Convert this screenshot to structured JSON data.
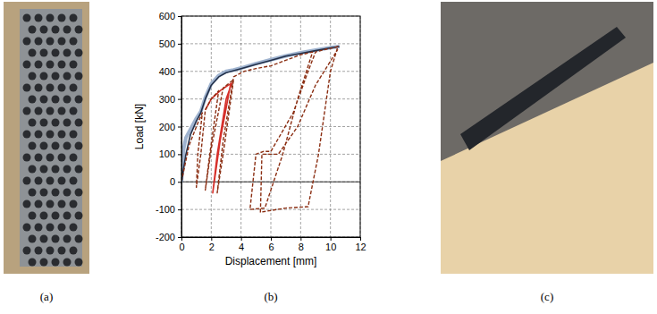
{
  "panel_labels": [
    "(a)",
    "(b)",
    "(c)"
  ],
  "chart_data": {
    "type": "line",
    "x_label": "Displacement [mm]",
    "y_label": "Load [kN]",
    "xlim": [
      0,
      12
    ],
    "xticks": [
      0,
      2,
      4,
      6,
      8,
      10,
      12
    ],
    "ylim": [
      -200,
      600
    ],
    "yticks": [
      -200,
      -100,
      0,
      100,
      200,
      300,
      400,
      500,
      600
    ],
    "grid": true,
    "series": [
      {
        "color": "#9fb3cf",
        "line_style": "solid",
        "x": [
          0,
          0.15,
          0.3,
          0.6,
          1.0,
          1.3,
          1.6,
          2.0,
          2.5,
          3.0,
          3.5,
          4.0,
          5.0,
          6.0,
          7.0,
          8.0,
          9.0,
          10.0,
          10.6
        ],
        "values": [
          0,
          120,
          160,
          190,
          230,
          255,
          305,
          355,
          385,
          400,
          405,
          412,
          428,
          442,
          456,
          467,
          477,
          486,
          490
        ]
      },
      {
        "color": "#22304a",
        "line_style": "solid",
        "x": [
          0,
          0.3,
          0.6,
          1.0,
          1.3,
          1.6,
          2.0,
          2.5,
          3.0,
          4.0,
          5.0,
          6.0,
          7.0,
          8.0,
          9.0,
          10.0,
          10.6
        ],
        "values": [
          0,
          100,
          170,
          220,
          250,
          300,
          350,
          380,
          395,
          410,
          425,
          440,
          455,
          465,
          475,
          485,
          490
        ]
      },
      {
        "color": "#d6302b",
        "line_style": "solid",
        "x": [
          1.6,
          2.0,
          2.6,
          3.0,
          3.3,
          2.6,
          2.1,
          2.4,
          3.0,
          3.4
        ],
        "values": [
          260,
          300,
          330,
          345,
          355,
          150,
          -40,
          100,
          300,
          360
        ]
      },
      {
        "color": "#8b2e12",
        "line_style": "dashed",
        "x": [
          0,
          0.5,
          1.0,
          1.4,
          1.1,
          1.0,
          1.3,
          1.6,
          2.0,
          2.5,
          1.9,
          1.6,
          2.0,
          2.8,
          3.5,
          2.8,
          2.4,
          2.8,
          3.5,
          4.2,
          5.0,
          6.0,
          7.0,
          8.0,
          8.8,
          7.8,
          6.8,
          5.6,
          4.6,
          5.0,
          5.5,
          6.0,
          7.5,
          8.5,
          9.0,
          9.7,
          10.2,
          10.5,
          10.0,
          9.2,
          8.5,
          7.0,
          5.3,
          5.4,
          6.5,
          7.8,
          9.0,
          10.5
        ],
        "values": [
          0,
          130,
          200,
          250,
          100,
          -20,
          100,
          260,
          300,
          330,
          100,
          -30,
          120,
          340,
          370,
          100,
          -40,
          150,
          380,
          400,
          410,
          420,
          440,
          460,
          470,
          300,
          100,
          -95,
          -100,
          100,
          110,
          110,
          250,
          400,
          470,
          480,
          485,
          490,
          400,
          100,
          -90,
          -95,
          -110,
          100,
          100,
          200,
          350,
          480
        ]
      }
    ]
  }
}
